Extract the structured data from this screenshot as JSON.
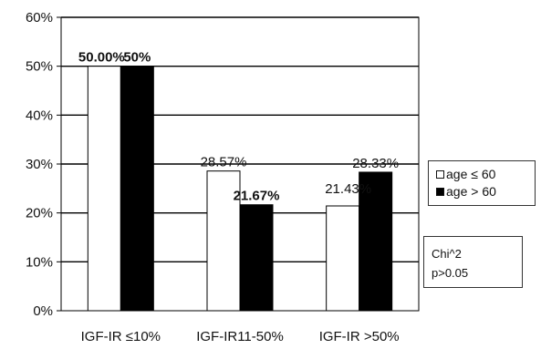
{
  "chart_data": {
    "type": "bar",
    "categories": [
      "IGF-IR ≤10%",
      "IGF-IR11-50%",
      "IGF-IR >50%"
    ],
    "series": [
      {
        "name": "age ≤ 60",
        "values": [
          50.0,
          28.57,
          21.43
        ],
        "labels": [
          "50.00%",
          "28.57%",
          "21.43%"
        ],
        "color": "#ffffff"
      },
      {
        "name": "age > 60",
        "values": [
          50.0,
          21.67,
          28.33
        ],
        "labels": [
          "50%",
          "21.67%",
          "28.33%"
        ],
        "color": "#000000"
      }
    ],
    "yticks": [
      "0%",
      "10%",
      "20%",
      "30%",
      "40%",
      "50%",
      "60%"
    ],
    "ylim": [
      0,
      60
    ],
    "grid": true,
    "legend_position": "right",
    "annotation": {
      "line1": "Chi^2",
      "line2": "p>0.05"
    }
  }
}
